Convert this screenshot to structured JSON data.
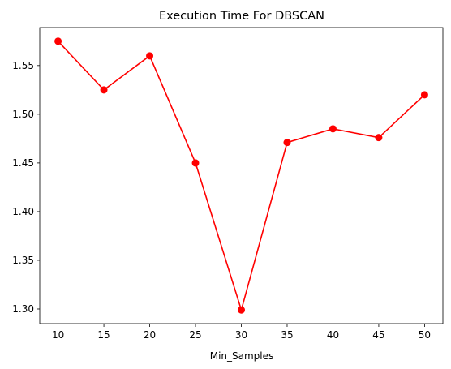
{
  "chart_data": {
    "type": "line",
    "title": "Execution Time For DBSCAN",
    "xlabel": "Min_Samples",
    "ylabel": "",
    "x": [
      10,
      15,
      20,
      25,
      30,
      35,
      40,
      45,
      50
    ],
    "series": [
      {
        "values": [
          1.575,
          1.525,
          1.56,
          1.45,
          1.299,
          1.471,
          1.485,
          1.476,
          1.52
        ],
        "color": "#ff0000",
        "marker": "circle"
      }
    ],
    "xticks": [
      10,
      15,
      20,
      25,
      30,
      35,
      40,
      45,
      50
    ],
    "yticks": [
      "1.30",
      "1.35",
      "1.40",
      "1.45",
      "1.50",
      "1.55"
    ],
    "xlim": [
      8,
      52
    ],
    "ylim": [
      1.285,
      1.589
    ],
    "grid": false,
    "legend": false
  }
}
